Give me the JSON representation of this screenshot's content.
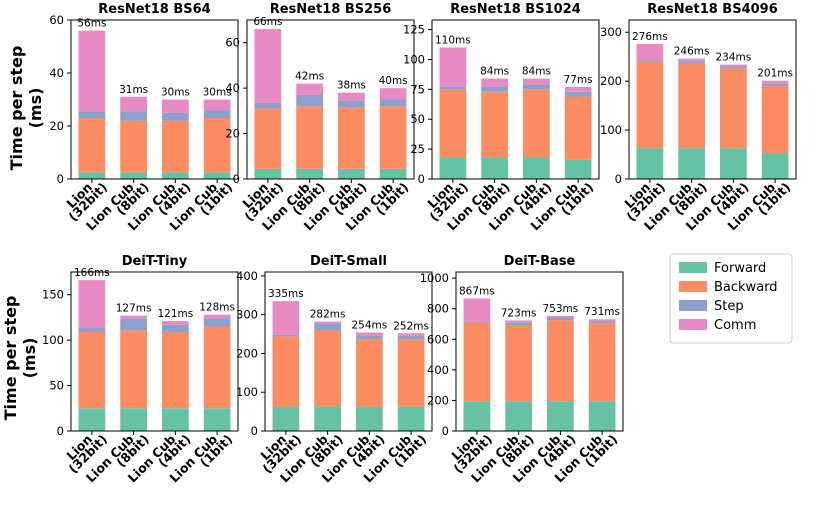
{
  "figure": {
    "ylabel_lines": [
      "Time per step",
      "(ms)"
    ]
  },
  "legend": {
    "items": [
      {
        "name": "Forward",
        "color": "#66c2a5"
      },
      {
        "name": "Backward",
        "color": "#fc8d62"
      },
      {
        "name": "Step",
        "color": "#8da0cb"
      },
      {
        "name": "Comm",
        "color": "#e78ac3"
      }
    ]
  },
  "chart_data": [
    {
      "type": "bar",
      "stacked": true,
      "title": "ResNet18 BS64",
      "categories": [
        [
          "Lion",
          "(32bit)"
        ],
        [
          "Lion Cub",
          "(8bit)"
        ],
        [
          "Lion Cub",
          "(4bit)"
        ],
        [
          "Lion Cub",
          "(1bit)"
        ]
      ],
      "ylim": [
        0,
        60
      ],
      "yticks": [
        0,
        20,
        40,
        60
      ],
      "series": [
        {
          "name": "Forward",
          "values": [
            2.5,
            2.5,
            2.5,
            2.5
          ]
        },
        {
          "name": "Backward",
          "values": [
            20.5,
            19.5,
            19.5,
            20.5
          ]
        },
        {
          "name": "Step",
          "values": [
            2.5,
            3.5,
            3.0,
            3.0
          ]
        },
        {
          "name": "Comm",
          "values": [
            30.5,
            5.5,
            5.0,
            4.0
          ]
        }
      ],
      "labels": [
        "56ms",
        "31ms",
        "30ms",
        "30ms"
      ]
    },
    {
      "type": "bar",
      "stacked": true,
      "title": "ResNet18 BS256",
      "categories": [
        [
          "Lion",
          "(32bit)"
        ],
        [
          "Lion Cub",
          "(8bit)"
        ],
        [
          "Lion Cub",
          "(4bit)"
        ],
        [
          "Lion Cub",
          "(1bit)"
        ]
      ],
      "ylim": [
        0,
        70
      ],
      "yticks": [
        0,
        20,
        40,
        60
      ],
      "series": [
        {
          "name": "Forward",
          "values": [
            4.5,
            4.5,
            4.5,
            4.5
          ]
        },
        {
          "name": "Backward",
          "values": [
            26.5,
            27.5,
            27.0,
            27.5
          ]
        },
        {
          "name": "Step",
          "values": [
            2.5,
            5.0,
            3.0,
            3.0
          ]
        },
        {
          "name": "Comm",
          "values": [
            32.5,
            5.0,
            3.5,
            5.0
          ]
        }
      ],
      "labels": [
        "66ms",
        "42ms",
        "38ms",
        "40ms"
      ]
    },
    {
      "type": "bar",
      "stacked": true,
      "title": "ResNet18 BS1024",
      "categories": [
        [
          "Lion",
          "(32bit)"
        ],
        [
          "Lion Cub",
          "(8bit)"
        ],
        [
          "Lion Cub",
          "(4bit)"
        ],
        [
          "Lion Cub",
          "(1bit)"
        ]
      ],
      "ylim": [
        0,
        133
      ],
      "yticks": [
        0,
        25,
        50,
        75,
        100,
        125
      ],
      "series": [
        {
          "name": "Forward",
          "values": [
            18,
            18,
            18,
            16
          ]
        },
        {
          "name": "Backward",
          "values": [
            57,
            55,
            57,
            53
          ]
        },
        {
          "name": "Step",
          "values": [
            2.5,
            4.5,
            4.0,
            4.0
          ]
        },
        {
          "name": "Comm",
          "values": [
            32.5,
            6.5,
            5.0,
            4.0
          ]
        }
      ],
      "labels": [
        "110ms",
        "84ms",
        "84ms",
        "77ms"
      ]
    },
    {
      "type": "bar",
      "stacked": true,
      "title": "ResNet18 BS4096",
      "categories": [
        [
          "Lion",
          "(32bit)"
        ],
        [
          "Lion Cub",
          "(8bit)"
        ],
        [
          "Lion Cub",
          "(4bit)"
        ],
        [
          "Lion Cub",
          "(1bit)"
        ]
      ],
      "ylim": [
        0,
        325
      ],
      "yticks": [
        0,
        100,
        200,
        300
      ],
      "series": [
        {
          "name": "Forward",
          "values": [
            63,
            63,
            63,
            53
          ]
        },
        {
          "name": "Backward",
          "values": [
            177,
            173,
            163,
            137
          ]
        },
        {
          "name": "Step",
          "values": [
            3,
            5,
            4,
            5
          ]
        },
        {
          "name": "Comm",
          "values": [
            33,
            5,
            4,
            6
          ]
        }
      ],
      "labels": [
        "276ms",
        "246ms",
        "234ms",
        "201ms"
      ]
    },
    {
      "type": "bar",
      "stacked": true,
      "title": "DeiT-Tiny",
      "categories": [
        [
          "Lion",
          "(32bit)"
        ],
        [
          "Lion Cub",
          "(8bit)"
        ],
        [
          "Lion Cub",
          "(4bit)"
        ],
        [
          "Lion Cub",
          "(1bit)"
        ]
      ],
      "ylim": [
        0,
        175
      ],
      "yticks": [
        0,
        50,
        100,
        150
      ],
      "series": [
        {
          "name": "Forward",
          "values": [
            25,
            25,
            25,
            25
          ]
        },
        {
          "name": "Backward",
          "values": [
            84,
            86,
            84,
            90
          ]
        },
        {
          "name": "Step",
          "values": [
            5,
            13,
            8,
            9
          ]
        },
        {
          "name": "Comm",
          "values": [
            52,
            3,
            4,
            4
          ]
        }
      ],
      "labels": [
        "166ms",
        "127ms",
        "121ms",
        "128ms"
      ]
    },
    {
      "type": "bar",
      "stacked": true,
      "title": "DeiT-Small",
      "categories": [
        [
          "Lion",
          "(32bit)"
        ],
        [
          "Lion Cub",
          "(8bit)"
        ],
        [
          "Lion Cub",
          "(4bit)"
        ],
        [
          "Lion Cub",
          "(1bit)"
        ]
      ],
      "ylim": [
        0,
        410
      ],
      "yticks": [
        0,
        100,
        200,
        300,
        400
      ],
      "series": [
        {
          "name": "Forward",
          "values": [
            63,
            63,
            63,
            63
          ]
        },
        {
          "name": "Backward",
          "values": [
            181,
            196,
            174,
            174
          ]
        },
        {
          "name": "Step",
          "values": [
            4,
            18,
            10,
            9
          ]
        },
        {
          "name": "Comm",
          "values": [
            87,
            5,
            7,
            6
          ]
        }
      ],
      "labels": [
        "335ms",
        "282ms",
        "254ms",
        "252ms"
      ]
    },
    {
      "type": "bar",
      "stacked": true,
      "title": "DeiT-Base",
      "categories": [
        [
          "Lion",
          "(32bit)"
        ],
        [
          "Lion Cub",
          "(8bit)"
        ],
        [
          "Lion Cub",
          "(4bit)"
        ],
        [
          "Lion Cub",
          "(1bit)"
        ]
      ],
      "ylim": [
        0,
        1040
      ],
      "yticks": [
        0,
        200,
        400,
        600,
        800,
        1000
      ],
      "series": [
        {
          "name": "Forward",
          "values": [
            195,
            195,
            195,
            195
          ]
        },
        {
          "name": "Backward",
          "values": [
            515,
            498,
            530,
            510
          ]
        },
        {
          "name": "Step",
          "values": [
            7,
            18,
            14,
            13
          ]
        },
        {
          "name": "Comm",
          "values": [
            150,
            12,
            14,
            13
          ]
        }
      ],
      "labels": [
        "867ms",
        "723ms",
        "753ms",
        "731ms"
      ]
    }
  ]
}
